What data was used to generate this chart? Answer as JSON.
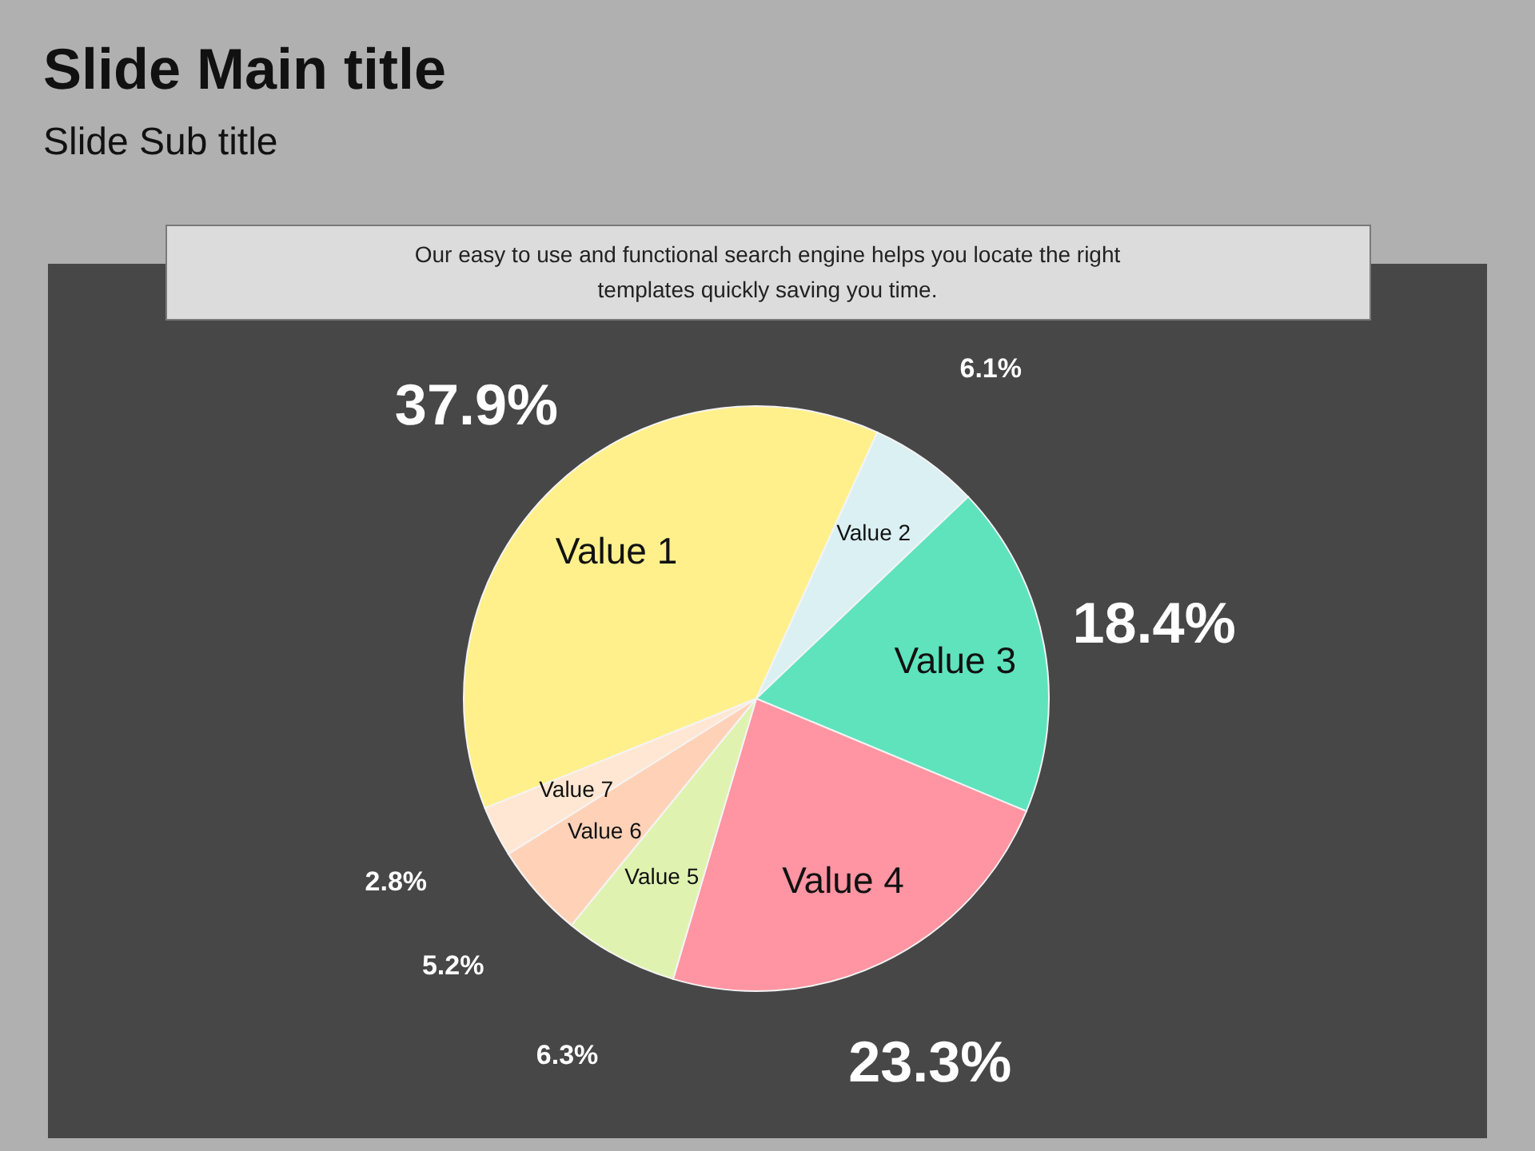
{
  "chart_data": {
    "type": "pie",
    "title": "Slide Main title",
    "subtitle": "Slide Sub title",
    "annotations": [
      "Our easy to use and functional search engine helps you locate the right\ntemplates quickly saving you time."
    ],
    "categories": [
      "Value 1",
      "Value 2",
      "Value 3",
      "Value 4",
      "Value 5",
      "Value 6",
      "Value 7"
    ],
    "values": [
      37.9,
      6.1,
      18.4,
      23.3,
      6.3,
      5.2,
      2.8
    ],
    "colors": [
      "#fff08c",
      "#daf0f3",
      "#5ee3bd",
      "#ff95a2",
      "#e0f2b0",
      "#ffd2b8",
      "#ffe7d3"
    ],
    "value_labels": [
      "37.9%",
      "6.1%",
      "18.4%",
      "23.3%",
      "6.3%",
      "5.2%",
      "2.8%"
    ]
  }
}
